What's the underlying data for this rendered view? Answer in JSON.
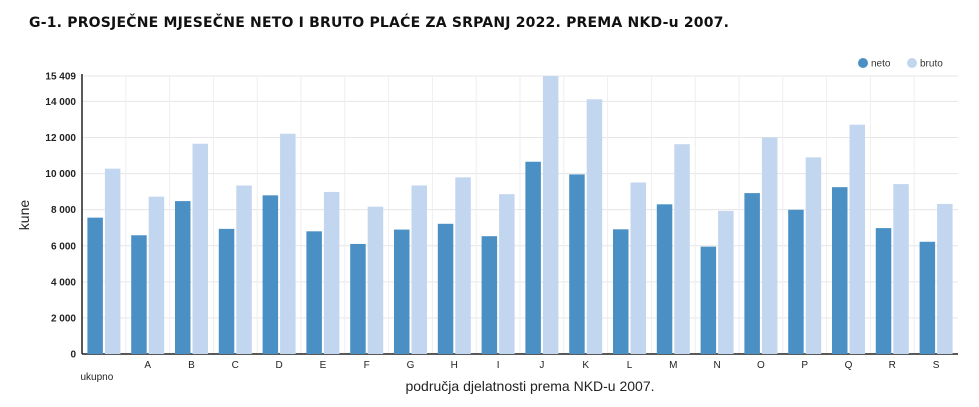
{
  "chart_data": {
    "type": "bar",
    "title": "G-1. PROSJEČNE MJESEČNE NETO I BRUTO PLAĆE ZA SRPANJ 2022. PREMA NKD-u 2007.",
    "xlabel": "područja djelatnosti prema NKD-u 2007.",
    "ylabel": "kune",
    "ylim": [
      0,
      15409
    ],
    "yticks": [
      "0",
      "2 000",
      "4 000",
      "6 000",
      "8 000",
      "10 000",
      "12 000",
      "14 000",
      "15 409"
    ],
    "categories": [
      "ukupno",
      "A",
      "B",
      "C",
      "D",
      "E",
      "F",
      "G",
      "H",
      "I",
      "J",
      "K",
      "L",
      "M",
      "N",
      "O",
      "P",
      "Q",
      "R",
      "S"
    ],
    "series": [
      {
        "name": "neto",
        "color": "#4a90c4",
        "values": [
          7558,
          6582,
          8475,
          6936,
          8795,
          6800,
          6100,
          6896,
          7217,
          6530,
          10656,
          9953,
          6912,
          8297,
          5950,
          8918,
          7994,
          9247,
          6979,
          6220
        ]
      },
      {
        "name": "bruto",
        "color": "#c3d6ef",
        "values": [
          10273,
          8721,
          11654,
          9339,
          12209,
          8983,
          8165,
          9343,
          9792,
          8860,
          15409,
          14118,
          9507,
          11630,
          7934,
          12005,
          10900,
          12711,
          9418,
          8319
        ]
      }
    ],
    "legend": "top-right",
    "grid": true
  }
}
